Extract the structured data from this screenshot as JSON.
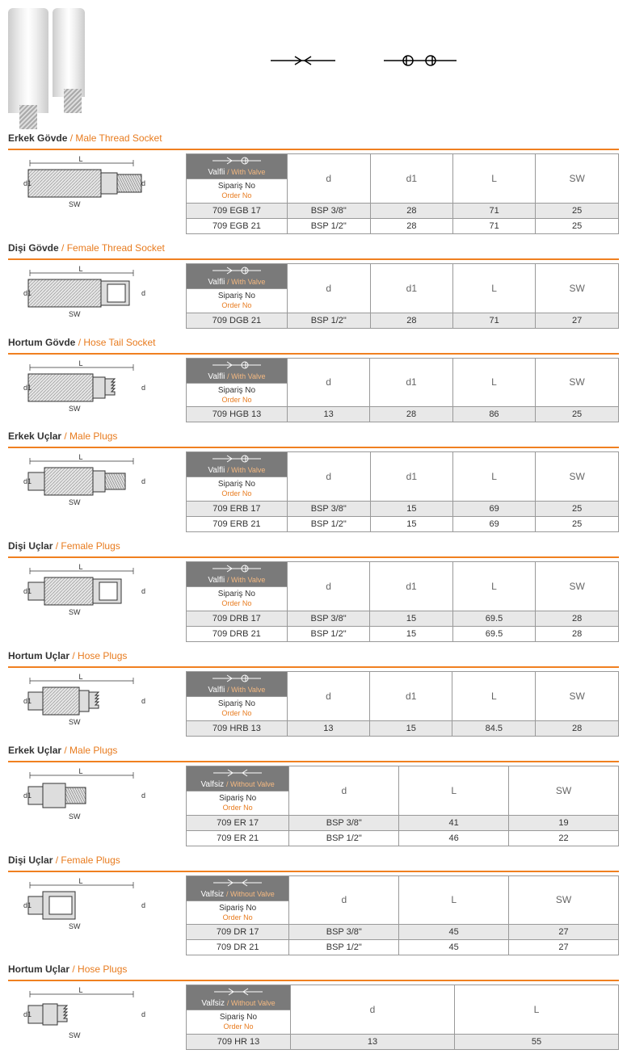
{
  "labels": {
    "valfli_tr": "Valfli",
    "valfli_en": "/ With Valve",
    "valfsiz_tr": "Valfsiz",
    "valfsiz_en": "/ Without Valve",
    "siparis_tr": "Sipariş No",
    "siparis_en": "Order No",
    "d": "d",
    "d1": "d1",
    "L": "L",
    "SW": "SW"
  },
  "sections": [
    {
      "title_tr": "Erkek Gövde",
      "title_en": "/ Male Thread Socket",
      "diagram": "socket_male",
      "valve": true,
      "cols": [
        "d",
        "d1",
        "L",
        "SW"
      ],
      "rows": [
        {
          "order": "709 EGB 17",
          "d": "BSP 3/8\"",
          "d1": "28",
          "L": "71",
          "SW": "25"
        },
        {
          "order": "709 EGB 21",
          "d": "BSP 1/2\"",
          "d1": "28",
          "L": "71",
          "SW": "25"
        }
      ]
    },
    {
      "title_tr": "Dişi Gövde",
      "title_en": "/ Female Thread Socket",
      "diagram": "socket_female",
      "valve": true,
      "cols": [
        "d",
        "d1",
        "L",
        "SW"
      ],
      "rows": [
        {
          "order": "709 DGB 21",
          "d": "BSP 1/2\"",
          "d1": "28",
          "L": "71",
          "SW": "27"
        }
      ]
    },
    {
      "title_tr": "Hortum Gövde",
      "title_en": "/ Hose Tail Socket",
      "diagram": "socket_hose",
      "valve": true,
      "cols": [
        "d",
        "d1",
        "L",
        "SW"
      ],
      "rows": [
        {
          "order": "709 HGB 13",
          "d": "13",
          "d1": "28",
          "L": "86",
          "SW": "25"
        }
      ]
    },
    {
      "title_tr": "Erkek Uçlar",
      "title_en": "/ Male Plugs",
      "diagram": "plug_male_v",
      "valve": true,
      "cols": [
        "d",
        "d1",
        "L",
        "SW"
      ],
      "rows": [
        {
          "order": "709 ERB 17",
          "d": "BSP 3/8\"",
          "d1": "15",
          "L": "69",
          "SW": "25"
        },
        {
          "order": "709 ERB 21",
          "d": "BSP 1/2\"",
          "d1": "15",
          "L": "69",
          "SW": "25"
        }
      ]
    },
    {
      "title_tr": "Dişi Uçlar",
      "title_en": "/ Female Plugs",
      "diagram": "plug_female_v",
      "valve": true,
      "cols": [
        "d",
        "d1",
        "L",
        "SW"
      ],
      "rows": [
        {
          "order": "709 DRB 17",
          "d": "BSP 3/8\"",
          "d1": "15",
          "L": "69.5",
          "SW": "28"
        },
        {
          "order": "709 DRB 21",
          "d": "BSP 1/2\"",
          "d1": "15",
          "L": "69.5",
          "SW": "28"
        }
      ]
    },
    {
      "title_tr": "Hortum Uçlar",
      "title_en": "/ Hose Plugs",
      "diagram": "plug_hose_v",
      "valve": true,
      "cols": [
        "d",
        "d1",
        "L",
        "SW"
      ],
      "rows": [
        {
          "order": "709 HRB 13",
          "d": "13",
          "d1": "15",
          "L": "84.5",
          "SW": "28"
        }
      ]
    },
    {
      "title_tr": "Erkek Uçlar",
      "title_en": "/ Male Plugs",
      "diagram": "plug_male",
      "valve": false,
      "cols": [
        "d",
        "L",
        "SW"
      ],
      "rows": [
        {
          "order": "709 ER 17",
          "d": "BSP 3/8\"",
          "L": "41",
          "SW": "19"
        },
        {
          "order": "709 ER 21",
          "d": "BSP 1/2\"",
          "L": "46",
          "SW": "22"
        }
      ]
    },
    {
      "title_tr": "Dişi Uçlar",
      "title_en": "/ Female Plugs",
      "diagram": "plug_female",
      "valve": false,
      "cols": [
        "d",
        "L",
        "SW"
      ],
      "rows": [
        {
          "order": "709 DR 17",
          "d": "BSP 3/8\"",
          "L": "45",
          "SW": "27"
        },
        {
          "order": "709 DR 21",
          "d": "BSP 1/2\"",
          "L": "45",
          "SW": "27"
        }
      ]
    },
    {
      "title_tr": "Hortum Uçlar",
      "title_en": "/ Hose Plugs",
      "diagram": "plug_hose",
      "valve": false,
      "cols": [
        "d",
        "L"
      ],
      "rows": [
        {
          "order": "709 HR 13",
          "d": "13",
          "L": "55"
        }
      ]
    }
  ]
}
